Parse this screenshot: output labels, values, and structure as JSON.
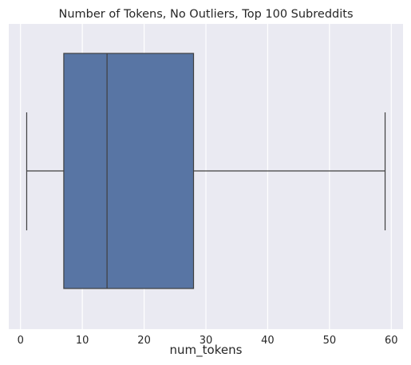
{
  "chart_data": {
    "type": "boxplot",
    "title": "Number of Tokens, No Outliers, Top 100 Subreddits",
    "xlabel": "num_tokens",
    "ylabel": "",
    "xlim": [
      -1.9,
      61.9
    ],
    "x_ticks": [
      0,
      10,
      20,
      30,
      40,
      50,
      60
    ],
    "x_tick_labels": [
      "0",
      "10",
      "20",
      "30",
      "40",
      "50",
      "60"
    ],
    "grid": true,
    "orientation": "horizontal",
    "box": {
      "whisker_low": 1,
      "q1": 7,
      "median": 14,
      "q3": 28,
      "whisker_high": 59
    },
    "colors": {
      "background": "#eaeaf2",
      "grid": "#ffffff",
      "box_fill": "#5875a4",
      "lines": "#3f3f3f"
    }
  }
}
